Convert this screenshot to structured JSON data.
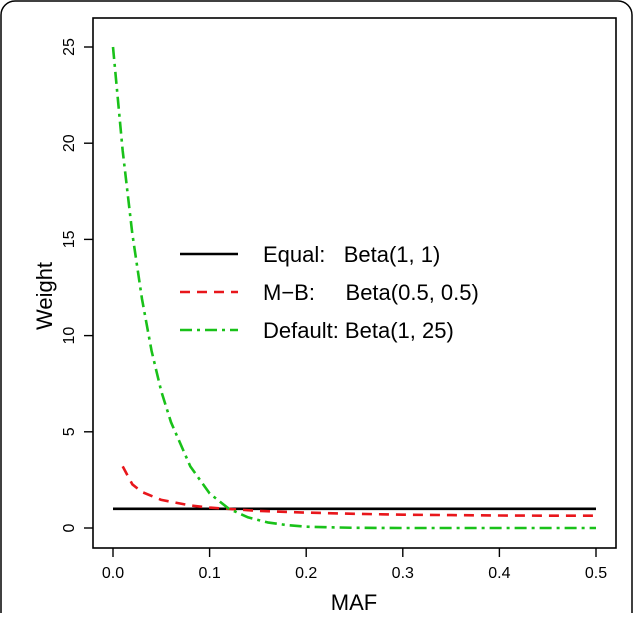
{
  "chart_data": {
    "type": "line",
    "title": "",
    "xlabel": "MAF",
    "ylabel": "Weight",
    "xlim": [
      0,
      0.5
    ],
    "ylim": [
      0,
      25
    ],
    "x_ticks": [
      "0.0",
      "0.1",
      "0.2",
      "0.3",
      "0.4",
      "0.5"
    ],
    "y_ticks": [
      "0",
      "5",
      "10",
      "15",
      "20",
      "25"
    ],
    "grid": false,
    "legend_position": "center",
    "series": [
      {
        "name": "Equal:   Beta(1, 1)",
        "color": "#000000",
        "line_style": "solid",
        "x": [
          0.0,
          0.1,
          0.2,
          0.3,
          0.4,
          0.5
        ],
        "y": [
          1.0,
          1.0,
          1.0,
          1.0,
          1.0,
          1.0
        ]
      },
      {
        "name": "M−B:     Beta(0.5, 0.5)",
        "color": "#e8161b",
        "line_style": "dashed",
        "x": [
          0.01,
          0.02,
          0.03,
          0.05,
          0.08,
          0.1,
          0.15,
          0.2,
          0.25,
          0.3,
          0.35,
          0.4,
          0.45,
          0.5
        ],
        "y": [
          3.2,
          2.27,
          1.87,
          1.46,
          1.17,
          1.06,
          0.89,
          0.8,
          0.74,
          0.69,
          0.67,
          0.65,
          0.64,
          0.64
        ]
      },
      {
        "name": "Default: Beta(1, 25)",
        "color": "#19c119",
        "line_style": "dotdash",
        "x": [
          0.0,
          0.01,
          0.02,
          0.03,
          0.04,
          0.05,
          0.06,
          0.08,
          0.1,
          0.12,
          0.14,
          0.16,
          0.18,
          0.2,
          0.22,
          0.25,
          0.3,
          0.35,
          0.4,
          0.45,
          0.5
        ],
        "y": [
          25.0,
          19.6,
          15.3,
          11.9,
          9.2,
          7.1,
          5.5,
          3.2,
          1.8,
          1.0,
          0.55,
          0.29,
          0.15,
          0.07,
          0.04,
          0.01,
          0.0,
          0.0,
          0.0,
          0.0,
          0.0
        ]
      }
    ]
  }
}
